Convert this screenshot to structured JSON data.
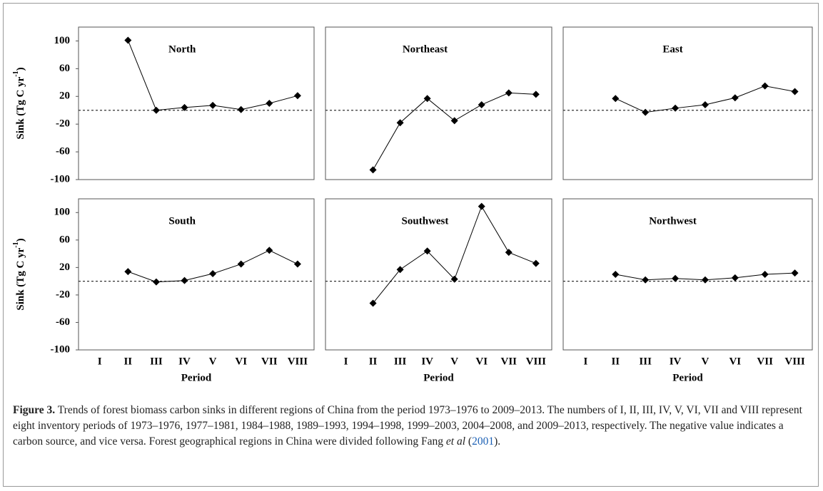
{
  "chart_data": [
    {
      "type": "line",
      "title": "North",
      "marker": "diamond",
      "ylim": [
        -100,
        120
      ],
      "yticks": [
        100,
        60,
        20,
        -20,
        -60,
        -100
      ],
      "hline": 0,
      "ylabel": {
        "text": "Sink (Tg C yr",
        "sup": "-1",
        "end": ")"
      },
      "series": [
        {
          "color": "#000000",
          "values": [
            null,
            101,
            0,
            4,
            7,
            1,
            10,
            21
          ]
        }
      ]
    },
    {
      "type": "line",
      "title": "Northeast",
      "marker": "diamond",
      "ylim": [
        -100,
        120
      ],
      "hline": 0,
      "series": [
        {
          "color": "#000000",
          "values": [
            null,
            -86,
            -18,
            17,
            -15,
            8,
            25,
            23
          ]
        }
      ]
    },
    {
      "type": "line",
      "title": "East",
      "marker": "diamond",
      "ylim": [
        -100,
        120
      ],
      "hline": 0,
      "series": [
        {
          "color": "#000000",
          "values": [
            null,
            17,
            -3,
            3,
            8,
            18,
            35,
            27
          ]
        }
      ]
    },
    {
      "type": "line",
      "title": "South",
      "marker": "diamond",
      "ylim": [
        -100,
        120
      ],
      "yticks": [
        100,
        60,
        20,
        -20,
        -60,
        -100
      ],
      "hline": 0,
      "ylabel": {
        "text": "Sink (Tg C yr",
        "sup": "-1",
        "end": ")"
      },
      "categories": [
        "I",
        "II",
        "III",
        "IV",
        "V",
        "VI",
        "VII",
        "VIII"
      ],
      "xlabel": "Period",
      "series": [
        {
          "color": "#000000",
          "values": [
            null,
            14,
            -1,
            1,
            11,
            25,
            45,
            25
          ]
        }
      ]
    },
    {
      "type": "line",
      "title": "Southwest",
      "marker": "diamond",
      "ylim": [
        -100,
        120
      ],
      "hline": 0,
      "categories": [
        "I",
        "II",
        "III",
        "IV",
        "V",
        "VI",
        "VII",
        "VIII"
      ],
      "xlabel": "Period",
      "series": [
        {
          "color": "#000000",
          "values": [
            null,
            -32,
            17,
            44,
            3,
            109,
            42,
            26
          ]
        }
      ]
    },
    {
      "type": "line",
      "title": "Northwest",
      "marker": "diamond",
      "ylim": [
        -100,
        120
      ],
      "hline": 0,
      "categories": [
        "I",
        "II",
        "III",
        "IV",
        "V",
        "VI",
        "VII",
        "VIII"
      ],
      "xlabel": "Period",
      "series": [
        {
          "color": "#000000",
          "values": [
            null,
            10,
            2,
            4,
            2,
            5,
            10,
            12
          ]
        }
      ]
    }
  ],
  "caption": {
    "label": "Figure 3.",
    "text": "Trends of forest biomass carbon sinks in different regions of China from the period 1973–1976 to 2009–2013. The numbers of I, II, III, IV, V, VI, VII and VIII represent eight inventory periods of 1973–1976, 1977–1981, 1984–1988, 1989–1993, 1994–1998, 1999–2003, 2004–2008, and 2009–2013, respectively. The negative value indicates a carbon source, and vice versa. Forest geographical regions in China were divided following Fang",
    "italic": "et al",
    "open": " (",
    "year": "2001",
    "close": ")."
  }
}
